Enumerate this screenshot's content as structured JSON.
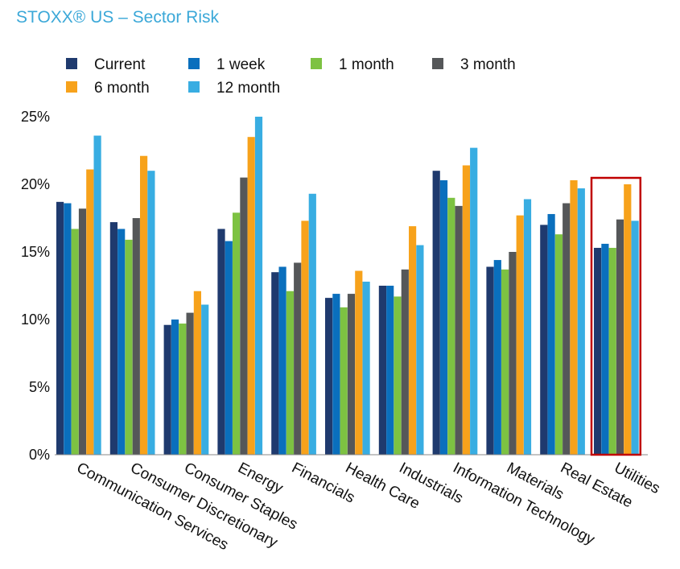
{
  "title": "STOXX® US – Sector Risk",
  "chart_data": {
    "type": "bar",
    "title": "STOXX® US – Sector Risk",
    "xlabel": "",
    "ylabel": "",
    "ylim": [
      0,
      25
    ],
    "yticks": [
      "0%",
      "5%",
      "10%",
      "15%",
      "20%",
      "25%"
    ],
    "grid": false,
    "legend_position": "top",
    "categories": [
      "Communication Services",
      "Consumer Discretionary",
      "Consumer Staples",
      "Energy",
      "Financials",
      "Health Care",
      "Industrials",
      "Information Technology",
      "Materials",
      "Real Estate",
      "Utilities"
    ],
    "series": [
      {
        "name": "Current",
        "color": "#1f3a6e",
        "values": [
          18.7,
          17.2,
          9.6,
          16.7,
          13.5,
          11.6,
          12.5,
          21.0,
          13.9,
          17.0,
          15.3
        ]
      },
      {
        "name": "1 week",
        "color": "#0a6fbd",
        "values": [
          18.6,
          16.7,
          10.0,
          15.8,
          13.9,
          11.9,
          12.5,
          20.3,
          14.4,
          17.8,
          15.6
        ]
      },
      {
        "name": "1 month",
        "color": "#7dc242",
        "values": [
          16.7,
          15.9,
          9.7,
          17.9,
          12.1,
          10.9,
          11.7,
          19.0,
          13.7,
          16.3,
          15.3
        ]
      },
      {
        "name": "3 month",
        "color": "#555759",
        "values": [
          18.2,
          17.5,
          10.5,
          20.5,
          14.2,
          11.9,
          13.7,
          18.4,
          15.0,
          18.6,
          17.4
        ]
      },
      {
        "name": "6 month",
        "color": "#f7a21b",
        "values": [
          21.1,
          22.1,
          12.1,
          23.5,
          17.3,
          13.6,
          16.9,
          21.4,
          17.7,
          20.3,
          20.0
        ]
      },
      {
        "name": "12 month",
        "color": "#38ade2",
        "values": [
          23.6,
          21.0,
          11.1,
          26.0,
          19.3,
          12.8,
          15.5,
          22.7,
          18.9,
          19.7,
          17.3
        ]
      }
    ],
    "highlight": {
      "category": "Utilities",
      "color": "#c00000"
    }
  }
}
